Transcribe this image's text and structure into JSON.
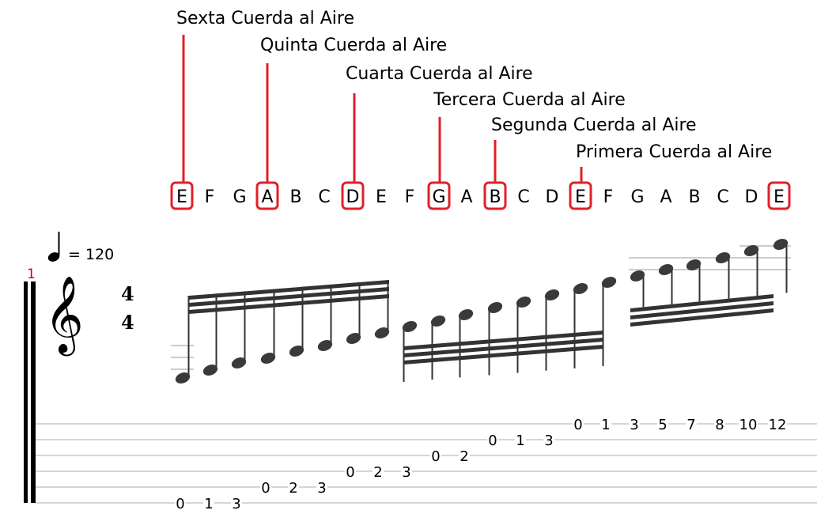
{
  "accent_color": "#e0202a",
  "string_labels": [
    "Sexta Cuerda al Aire",
    "Quinta Cuerda al Aire",
    "Cuarta Cuerda al Aire",
    "Tercera Cuerda al Aire",
    "Segunda Cuerda al Aire",
    "Primera Cuerda al Aire"
  ],
  "note_sequence": [
    "E",
    "F",
    "G",
    "A",
    "B",
    "C",
    "D",
    "E",
    "F",
    "G",
    "A",
    "B",
    "C",
    "D",
    "E",
    "F",
    "G",
    "A",
    "B",
    "C",
    "D",
    "E"
  ],
  "boxed_note_indices": [
    0,
    3,
    6,
    9,
    11,
    14,
    21
  ],
  "score": {
    "measure_number": "1",
    "tempo_text": "= 120",
    "time_signature": {
      "top": "4",
      "bottom": "4"
    },
    "clef": "treble-clef"
  },
  "tab": {
    "notes": [
      {
        "string": 6,
        "fret": "0"
      },
      {
        "string": 6,
        "fret": "1"
      },
      {
        "string": 6,
        "fret": "3"
      },
      {
        "string": 5,
        "fret": "0"
      },
      {
        "string": 5,
        "fret": "2"
      },
      {
        "string": 5,
        "fret": "3"
      },
      {
        "string": 4,
        "fret": "0"
      },
      {
        "string": 4,
        "fret": "2"
      },
      {
        "string": 4,
        "fret": "3"
      },
      {
        "string": 3,
        "fret": "0"
      },
      {
        "string": 3,
        "fret": "2"
      },
      {
        "string": 2,
        "fret": "0"
      },
      {
        "string": 2,
        "fret": "1"
      },
      {
        "string": 2,
        "fret": "3"
      },
      {
        "string": 1,
        "fret": "0"
      },
      {
        "string": 1,
        "fret": "1"
      },
      {
        "string": 1,
        "fret": "3"
      },
      {
        "string": 1,
        "fret": "5"
      },
      {
        "string": 1,
        "fret": "7"
      },
      {
        "string": 1,
        "fret": "8"
      },
      {
        "string": 1,
        "fret": "10"
      },
      {
        "string": 1,
        "fret": "12"
      }
    ]
  }
}
